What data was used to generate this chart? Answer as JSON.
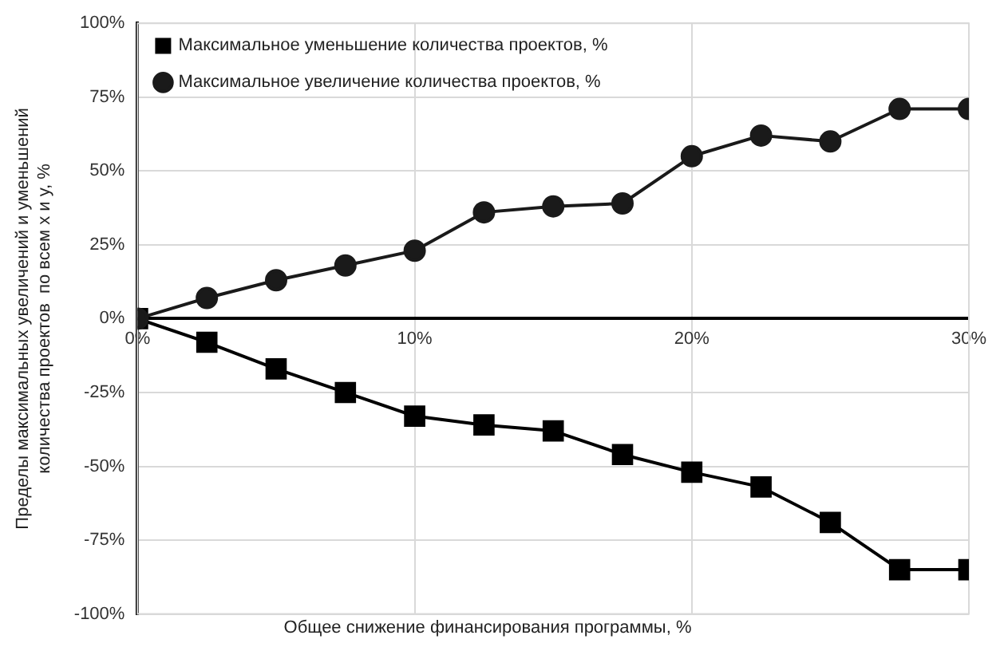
{
  "chart_data": {
    "type": "line",
    "xlabel": "Общее снижение финансирования программы, %",
    "ylabel": "Пределы максимальных увеличений и уменьшений количества проектов  по всем x и y, %",
    "x": [
      0,
      2.5,
      5,
      7.5,
      10,
      12.5,
      15,
      17.5,
      20,
      22.5,
      25,
      27.5,
      30
    ],
    "series": [
      {
        "name": "Максимальное уменьшение количества проектов, %",
        "color": "#000000",
        "marker": "square",
        "values": [
          0,
          -8,
          -17,
          -25,
          -33,
          -36,
          -38,
          -46,
          -52,
          -57,
          -69,
          -85,
          -85
        ]
      },
      {
        "name": "Максимальное увеличение количества проектов, %",
        "color": "#1a1a1a",
        "marker": "circle",
        "values": [
          0,
          7,
          13,
          18,
          23,
          36,
          38,
          39,
          55,
          62,
          60,
          71,
          71
        ]
      }
    ],
    "xlim": [
      0,
      30
    ],
    "xticks": [
      {
        "value": 0,
        "label": "0%"
      },
      {
        "value": 10,
        "label": "10%"
      },
      {
        "value": 20,
        "label": "20%"
      },
      {
        "value": 30,
        "label": "30%"
      }
    ],
    "ylim": [
      -100,
      100
    ],
    "yticks": [
      {
        "value": -100,
        "label": "-100%"
      },
      {
        "value": -75,
        "label": "-75%"
      },
      {
        "value": -50,
        "label": "-50%"
      },
      {
        "value": -25,
        "label": "-25%"
      },
      {
        "value": 0,
        "label": "0%"
      },
      {
        "value": 25,
        "label": "25%"
      },
      {
        "value": 50,
        "label": "50%"
      },
      {
        "value": 75,
        "label": "75%"
      },
      {
        "value": 100,
        "label": "100%"
      }
    ],
    "grid": true,
    "legend": "top left",
    "line_style": "solid"
  }
}
